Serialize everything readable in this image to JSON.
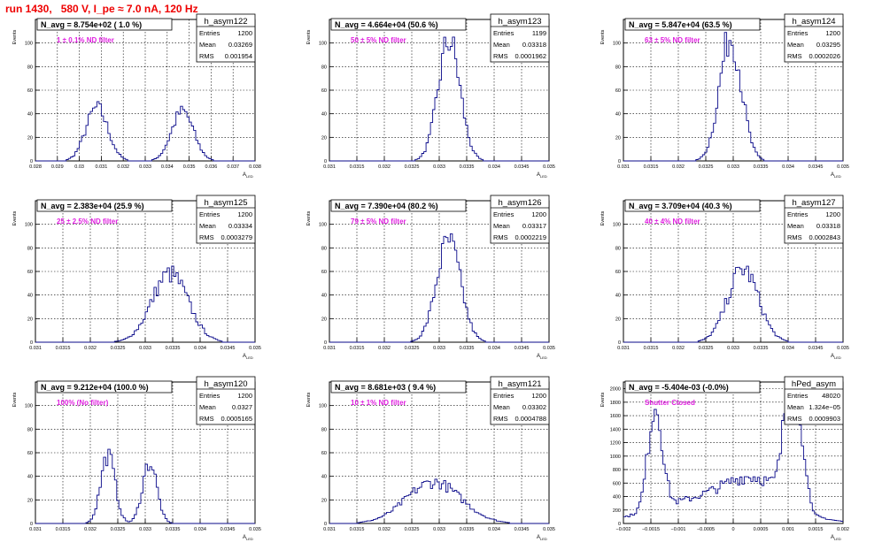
{
  "page_title": "run 1430,   580 V, I_pe ≈ 7.0 nA, 120 Hz",
  "chart_data": [
    {
      "type": "bar",
      "hist_name": "h_asym122",
      "title": "N_avg = 8.754e+02 ( 1.0 %)",
      "filter": "1 ± 0.1% ND filter",
      "ylabel": "Events",
      "xlabel": "A_LED",
      "stats": [
        [
          "Entries",
          "1200"
        ],
        [
          "Mean",
          "0.03269"
        ],
        [
          "RMS",
          "0.001954"
        ]
      ],
      "xlim": [
        0.028,
        0.038
      ],
      "ylim": [
        0,
        120
      ],
      "xticks": [
        "0.028",
        "0.029",
        "0.03",
        "0.031",
        "0.032",
        "0.033",
        "0.034",
        "0.035",
        "0.036",
        "0.037",
        "0.038"
      ],
      "yticks": [
        "0",
        "20",
        "40",
        "60",
        "80",
        "100"
      ],
      "peaks": [
        [
          0.0308,
          0.0005,
          45,
          0.5
        ],
        [
          0.0347,
          0.0005,
          42,
          0.5
        ]
      ]
    },
    {
      "type": "bar",
      "hist_name": "h_asym123",
      "title": "N_avg = 4.664e+04 (50.6 %)",
      "filter": "50 ± 5% ND filter",
      "ylabel": "Events",
      "xlabel": "A_LED",
      "stats": [
        [
          "Entries",
          "1199"
        ],
        [
          "Mean",
          "0.03318"
        ],
        [
          "RMS",
          "0.0001962"
        ]
      ],
      "xlim": [
        0.031,
        0.035
      ],
      "ylim": [
        0,
        120
      ],
      "xticks": [
        "0.031",
        "0.0315",
        "0.032",
        "0.0325",
        "0.033",
        "0.0335",
        "0.034",
        "0.0345",
        "0.035"
      ],
      "yticks": [
        "0",
        "20",
        "40",
        "60",
        "80",
        "100"
      ],
      "peaks": [
        [
          0.03318,
          0.0002,
          102,
          1
        ]
      ]
    },
    {
      "type": "bar",
      "hist_name": "h_asym124",
      "title": "N_avg = 5.847e+04 (63.5 %)",
      "filter": "63 ± 5% ND filter",
      "ylabel": "Events",
      "xlabel": "A_LED",
      "stats": [
        [
          "Entries",
          "1200"
        ],
        [
          "Mean",
          "0.03295"
        ],
        [
          "RMS",
          "0.0002026"
        ]
      ],
      "xlim": [
        0.031,
        0.035
      ],
      "ylim": [
        0,
        120
      ],
      "xticks": [
        "0.031",
        "0.0315",
        "0.032",
        "0.0325",
        "0.033",
        "0.0335",
        "0.034",
        "0.0345",
        "0.035"
      ],
      "yticks": [
        "0",
        "20",
        "40",
        "60",
        "80",
        "100"
      ],
      "peaks": [
        [
          0.03295,
          0.0002,
          105,
          1
        ]
      ]
    },
    {
      "type": "bar",
      "hist_name": "h_asym125",
      "title": "N_avg = 2.383e+04 (25.9 %)",
      "filter": "25 ± 2.5% ND filter",
      "ylabel": "Events",
      "xlabel": "A_LED",
      "stats": [
        [
          "Entries",
          "1200"
        ],
        [
          "Mean",
          "0.03334"
        ],
        [
          "RMS",
          "0.0003279"
        ]
      ],
      "xlim": [
        0.031,
        0.035
      ],
      "ylim": [
        0,
        120
      ],
      "xticks": [
        "0.031",
        "0.0315",
        "0.032",
        "0.0325",
        "0.033",
        "0.0335",
        "0.034",
        "0.0345",
        "0.035"
      ],
      "yticks": [
        "0",
        "20",
        "40",
        "60",
        "80",
        "100"
      ],
      "peaks": [
        [
          0.03345,
          0.00033,
          58,
          1
        ]
      ]
    },
    {
      "type": "bar",
      "hist_name": "h_asym126",
      "title": "N_avg = 7.390e+04 (80.2 %)",
      "filter": "79 ± 5% ND filter",
      "ylabel": "Events",
      "xlabel": "A_LED",
      "stats": [
        [
          "Entries",
          "1200"
        ],
        [
          "Mean",
          "0.03317"
        ],
        [
          "RMS",
          "0.0002219"
        ]
      ],
      "xlim": [
        0.031,
        0.035
      ],
      "ylim": [
        0,
        120
      ],
      "xticks": [
        "0.031",
        "0.0315",
        "0.032",
        "0.0325",
        "0.033",
        "0.0335",
        "0.034",
        "0.0345",
        "0.035"
      ],
      "yticks": [
        "0",
        "20",
        "40",
        "60",
        "80",
        "100"
      ],
      "peaks": [
        [
          0.03317,
          0.00022,
          85,
          1
        ]
      ]
    },
    {
      "type": "bar",
      "hist_name": "h_asym127",
      "title": "N_avg = 3.709e+04 (40.3 %)",
      "filter": "40 ± 4% ND filter",
      "ylabel": "Events",
      "xlabel": "A_LED",
      "stats": [
        [
          "Entries",
          "1200"
        ],
        [
          "Mean",
          "0.03318"
        ],
        [
          "RMS",
          "0.0002843"
        ]
      ],
      "xlim": [
        0.031,
        0.035
      ],
      "ylim": [
        0,
        120
      ],
      "xticks": [
        "0.031",
        "0.0315",
        "0.032",
        "0.0325",
        "0.033",
        "0.0335",
        "0.034",
        "0.0345",
        "0.035"
      ],
      "yticks": [
        "0",
        "20",
        "40",
        "60",
        "80",
        "100"
      ],
      "peaks": [
        [
          0.03318,
          0.00028,
          62,
          1
        ]
      ]
    },
    {
      "type": "bar",
      "hist_name": "h_asym120",
      "title": "N_avg = 9.212e+04 (100.0 %)",
      "filter": "100% (No filter)",
      "ylabel": "Events",
      "xlabel": "A_LED",
      "stats": [
        [
          "Entries",
          "1200"
        ],
        [
          "Mean",
          "0.0327"
        ],
        [
          "RMS",
          "0.0005165"
        ]
      ],
      "xlim": [
        0.031,
        0.035
      ],
      "ylim": [
        0,
        120
      ],
      "xticks": [
        "0.031",
        "0.0315",
        "0.032",
        "0.0325",
        "0.033",
        "0.0335",
        "0.034",
        "0.0345",
        "0.035"
      ],
      "yticks": [
        "0",
        "20",
        "40",
        "60",
        "80",
        "100"
      ],
      "peaks": [
        [
          0.03232,
          0.00013,
          58,
          0.5
        ],
        [
          0.03308,
          0.00013,
          52,
          0.5
        ]
      ]
    },
    {
      "type": "bar",
      "hist_name": "h_asym121",
      "title": "N_avg = 8.681e+03 ( 9.4 %)",
      "filter": "10 ± 1% ND filter",
      "ylabel": "Events",
      "xlabel": "A_LED",
      "stats": [
        [
          "Entries",
          "1200"
        ],
        [
          "Mean",
          "0.03302"
        ],
        [
          "RMS",
          "0.0004788"
        ]
      ],
      "xlim": [
        0.031,
        0.035
      ],
      "ylim": [
        0,
        120
      ],
      "xticks": [
        "0.031",
        "0.0315",
        "0.032",
        "0.0325",
        "0.033",
        "0.0335",
        "0.034",
        "0.0345",
        "0.035"
      ],
      "yticks": [
        "0",
        "20",
        "40",
        "60",
        "80",
        "100"
      ],
      "peaks": [
        [
          0.0329,
          0.0005,
          35,
          1
        ]
      ]
    },
    {
      "type": "bar",
      "hist_name": "hPed_asym",
      "title": "N_avg = -5.404e-03 (-0.0%)",
      "filter": "Shutter Closed",
      "ylabel": "Events",
      "xlabel": "A_LED",
      "stats": [
        [
          "Entries",
          "48020"
        ],
        [
          "Mean",
          "1.324e−05"
        ],
        [
          "RMS",
          "0.0009903"
        ]
      ],
      "xlim": [
        -0.002,
        0.002
      ],
      "ylim": [
        0,
        2100
      ],
      "xticks": [
        "−0.002",
        "−0.0015",
        "−0.001",
        "−0.0005",
        "0",
        "0.0005",
        "0.001",
        "0.0015",
        "0.002"
      ],
      "yticks": [
        "0",
        "200",
        "400",
        "600",
        "800",
        "1000",
        "1200",
        "1400",
        "1600",
        "1800",
        "2000"
      ],
      "peaks": [
        [
          -0.00142,
          0.00013,
          1550,
          0.25
        ],
        [
          0.00106,
          0.00013,
          1950,
          0.25
        ],
        [
          -0.0003,
          0.001,
          400,
          0.5
        ],
        [
          0.00045,
          0.0005,
          380,
          0.5
        ],
        [
          0.0013,
          6e-05,
          560,
          0.1
        ]
      ]
    }
  ]
}
